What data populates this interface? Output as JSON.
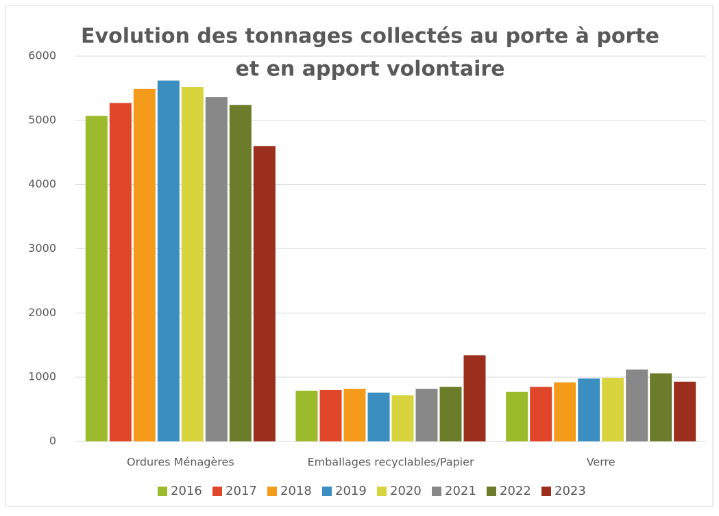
{
  "chart_data": {
    "type": "bar",
    "title": [
      "Evolution des tonnages collectés au porte à porte",
      "et en apport volontaire"
    ],
    "categories": [
      "Ordures Ménagères",
      "Emballages recyclables/Papier",
      "Verre"
    ],
    "series": [
      {
        "name": "2016",
        "color": "#9bbb2d",
        "values": [
          5070,
          790,
          770
        ]
      },
      {
        "name": "2017",
        "color": "#e0472a",
        "values": [
          5270,
          800,
          850
        ]
      },
      {
        "name": "2018",
        "color": "#f59b1c",
        "values": [
          5490,
          820,
          920
        ]
      },
      {
        "name": "2019",
        "color": "#3a8fc0",
        "values": [
          5620,
          760,
          980
        ]
      },
      {
        "name": "2020",
        "color": "#d7d43e",
        "values": [
          5520,
          720,
          990
        ]
      },
      {
        "name": "2021",
        "color": "#888888",
        "values": [
          5360,
          820,
          1120
        ]
      },
      {
        "name": "2022",
        "color": "#6b7d2a",
        "values": [
          5240,
          850,
          1060
        ]
      },
      {
        "name": "2023",
        "color": "#9b2e1c",
        "values": [
          4600,
          1340,
          930
        ]
      }
    ],
    "ylim": [
      0,
      6000
    ],
    "yticks": [
      0,
      1000,
      2000,
      3000,
      4000,
      5000,
      6000
    ],
    "grid": true,
    "legend": "bottom"
  }
}
